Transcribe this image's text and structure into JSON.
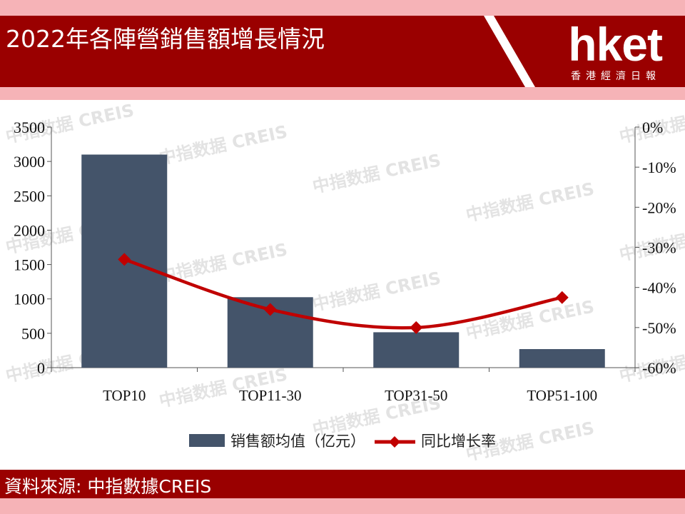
{
  "header": {
    "title": "2022年各陣營銷售額增長情況"
  },
  "logo": {
    "brand": "hket",
    "subtitle": "香港經濟日報"
  },
  "footer": {
    "source": "資料來源: 中指數據CREIS"
  },
  "watermark": {
    "text": "中指数据 CREIS"
  },
  "colors": {
    "header_bg": "#9a0000",
    "page_bg": "#f6b3b7",
    "bar": "#44546a",
    "line": "#c00000"
  },
  "chart_data": {
    "type": "bar",
    "categories": [
      "TOP10",
      "TOP11-30",
      "TOP31-50",
      "TOP51-100"
    ],
    "series": [
      {
        "name": "销售额均值（亿元）",
        "type": "bar",
        "axis": "left",
        "values": [
          3100,
          1025,
          515,
          270
        ]
      },
      {
        "name": "同比增长率",
        "type": "line",
        "axis": "right",
        "values": [
          -33,
          -45.5,
          -50,
          -42.5
        ]
      }
    ],
    "y_left": {
      "min": 0,
      "max": 3500,
      "ticks": [
        "0",
        "500",
        "1000",
        "1500",
        "2000",
        "2500",
        "3000",
        "3500"
      ]
    },
    "y_right": {
      "min": -60,
      "max": 0,
      "ticks": [
        "-60%",
        "-50%",
        "-40%",
        "-30%",
        "-20%",
        "-10%",
        "0%"
      ]
    },
    "legend": "bottom-center",
    "grid": false
  }
}
